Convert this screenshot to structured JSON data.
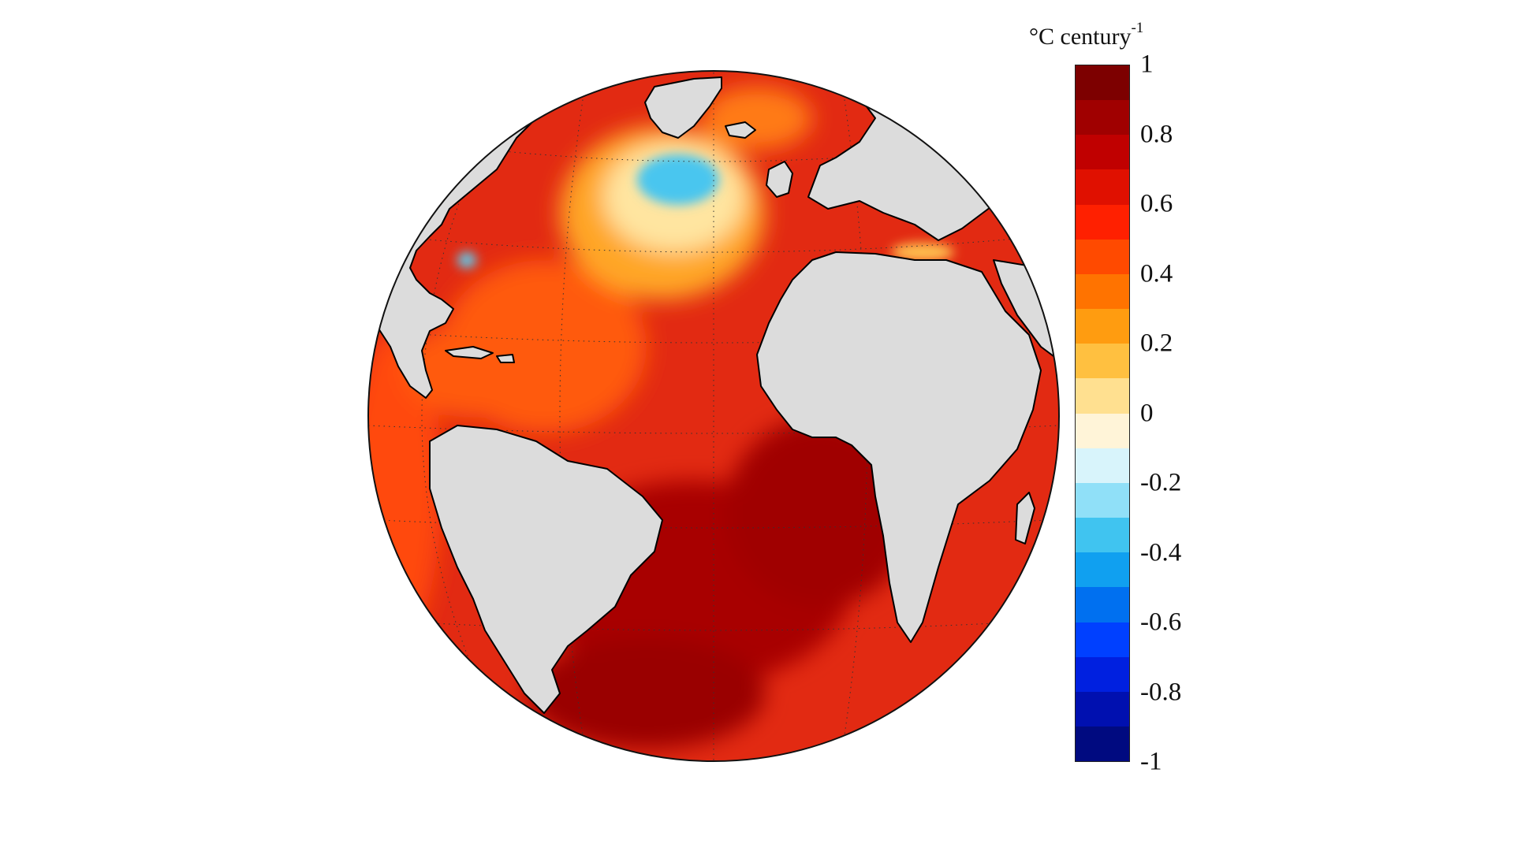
{
  "colorbar": {
    "title": "°C century",
    "title_superscript": "-1",
    "range": [
      -1,
      1
    ],
    "ticks": [
      "1",
      "0.8",
      "0.6",
      "0.4",
      "0.2",
      "0",
      "-0.2",
      "-0.4",
      "-0.6",
      "-0.8",
      "-1"
    ],
    "tick_values": [
      1,
      0.8,
      0.6,
      0.4,
      0.2,
      0,
      -0.2,
      -0.4,
      -0.6,
      -0.8,
      -1
    ],
    "colors_top_to_bottom": [
      "#7d0000",
      "#a00000",
      "#c00000",
      "#e01000",
      "#ff2000",
      "#ff4a00",
      "#ff7300",
      "#ff9c10",
      "#ffc040",
      "#ffe090",
      "#fff4d8",
      "#d8f4fb",
      "#90e0f8",
      "#40c4f0",
      "#10a0f0",
      "#0070f0",
      "#0040ff",
      "#0020e0",
      "#0010b0",
      "#000a80"
    ]
  },
  "map": {
    "projection": "orthographic",
    "land_color": "#dcdcdc",
    "coastline_color": "#000000",
    "ocean_background": "#e22a12",
    "gridlines": "dotted",
    "features": {
      "labrador_sea_anomaly": {
        "value": -0.3,
        "color": "#48c6ef"
      },
      "us_east_coast_anomaly": {
        "value": -0.2,
        "color": "#5ad0f2"
      },
      "south_atlantic_warm": {
        "value": 0.95,
        "color": "#8a0000"
      },
      "southern_ocean_warm": {
        "value": 0.95,
        "color": "#900000"
      },
      "subpolar_gyre_ring": {
        "value": 0.3,
        "color": "#ffb43a"
      }
    }
  }
}
